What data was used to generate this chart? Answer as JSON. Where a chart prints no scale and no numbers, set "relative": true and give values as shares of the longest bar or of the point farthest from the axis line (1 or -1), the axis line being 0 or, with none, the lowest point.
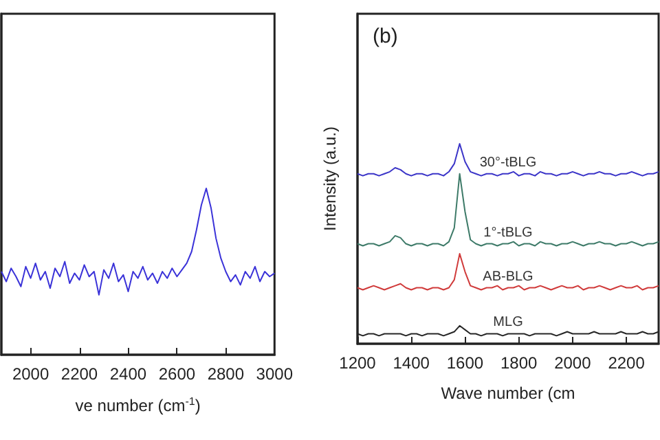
{
  "chart_data": [
    {
      "type": "line",
      "relative": true,
      "xlabel": "ve number (cm$^{-1}$)",
      "xlim": [
        1880,
        3000
      ],
      "xticks": [
        2000,
        2200,
        2400,
        2600,
        2800,
        3000
      ],
      "x": [
        1880,
        1900,
        1920,
        1940,
        1960,
        1980,
        2000,
        2020,
        2040,
        2060,
        2080,
        2100,
        2120,
        2140,
        2160,
        2180,
        2200,
        2220,
        2240,
        2260,
        2280,
        2300,
        2320,
        2340,
        2360,
        2380,
        2400,
        2420,
        2440,
        2460,
        2480,
        2500,
        2520,
        2540,
        2560,
        2580,
        2600,
        2620,
        2640,
        2660,
        2680,
        2700,
        2720,
        2740,
        2760,
        2780,
        2800,
        2820,
        2840,
        2860,
        2880,
        2900,
        2920,
        2940,
        2960,
        2980,
        3000
      ],
      "series": [
        {
          "color": "#3a32d8",
          "values": [
            0.5,
            0.44,
            0.52,
            0.47,
            0.41,
            0.53,
            0.46,
            0.55,
            0.45,
            0.5,
            0.4,
            0.52,
            0.47,
            0.56,
            0.43,
            0.49,
            0.45,
            0.54,
            0.47,
            0.5,
            0.36,
            0.51,
            0.46,
            0.55,
            0.44,
            0.48,
            0.38,
            0.5,
            0.46,
            0.53,
            0.45,
            0.49,
            0.43,
            0.5,
            0.46,
            0.52,
            0.47,
            0.51,
            0.55,
            0.62,
            0.75,
            0.9,
            1.0,
            0.88,
            0.7,
            0.58,
            0.5,
            0.44,
            0.48,
            0.42,
            0.5,
            0.46,
            0.53,
            0.44,
            0.5,
            0.47,
            0.49
          ]
        }
      ]
    },
    {
      "type": "line",
      "relative": true,
      "title": "(b)",
      "xlabel": "Wave number (cm",
      "ylabel": "Intensity (a.u.)",
      "xlim": [
        1200,
        2320
      ],
      "xticks": [
        1200,
        1400,
        1600,
        1800,
        2000,
        2200
      ],
      "x": [
        1200,
        1220,
        1240,
        1260,
        1280,
        1300,
        1320,
        1340,
        1360,
        1380,
        1400,
        1420,
        1440,
        1460,
        1480,
        1500,
        1520,
        1540,
        1560,
        1580,
        1600,
        1620,
        1640,
        1660,
        1680,
        1700,
        1720,
        1740,
        1760,
        1780,
        1800,
        1820,
        1840,
        1860,
        1880,
        1900,
        1920,
        1940,
        1960,
        1980,
        2000,
        2020,
        2040,
        2060,
        2080,
        2100,
        2120,
        2140,
        2160,
        2180,
        2200,
        2220,
        2240,
        2260,
        2280,
        2300,
        2320
      ],
      "series": [
        {
          "name": "30°-tBLG",
          "color": "#3b35c8",
          "values": [
            0.85,
            0.84,
            0.85,
            0.85,
            0.84,
            0.85,
            0.86,
            0.88,
            0.87,
            0.85,
            0.84,
            0.85,
            0.85,
            0.84,
            0.85,
            0.85,
            0.84,
            0.86,
            0.9,
            1.0,
            0.91,
            0.86,
            0.85,
            0.84,
            0.85,
            0.85,
            0.84,
            0.85,
            0.85,
            0.86,
            0.84,
            0.85,
            0.85,
            0.84,
            0.86,
            0.85,
            0.85,
            0.84,
            0.85,
            0.85,
            0.86,
            0.85,
            0.84,
            0.85,
            0.85,
            0.86,
            0.85,
            0.85,
            0.84,
            0.85,
            0.85,
            0.86,
            0.85,
            0.84,
            0.85,
            0.85,
            0.86
          ]
        },
        {
          "name": "1°-tBLG",
          "color": "#3d7a68",
          "values": [
            0.5,
            0.49,
            0.5,
            0.5,
            0.49,
            0.5,
            0.51,
            0.54,
            0.53,
            0.5,
            0.49,
            0.5,
            0.5,
            0.49,
            0.5,
            0.5,
            0.49,
            0.51,
            0.58,
            0.85,
            0.66,
            0.52,
            0.5,
            0.49,
            0.5,
            0.5,
            0.49,
            0.5,
            0.5,
            0.51,
            0.49,
            0.5,
            0.5,
            0.49,
            0.51,
            0.5,
            0.5,
            0.49,
            0.5,
            0.5,
            0.51,
            0.5,
            0.49,
            0.5,
            0.5,
            0.51,
            0.5,
            0.5,
            0.49,
            0.5,
            0.5,
            0.51,
            0.5,
            0.49,
            0.5,
            0.5,
            0.51
          ]
        },
        {
          "name": "AB-BLG",
          "color": "#d03a3a",
          "values": [
            0.28,
            0.27,
            0.28,
            0.29,
            0.28,
            0.27,
            0.28,
            0.29,
            0.3,
            0.28,
            0.27,
            0.28,
            0.28,
            0.27,
            0.28,
            0.28,
            0.27,
            0.28,
            0.32,
            0.45,
            0.36,
            0.29,
            0.28,
            0.27,
            0.28,
            0.28,
            0.29,
            0.27,
            0.28,
            0.28,
            0.29,
            0.27,
            0.28,
            0.28,
            0.29,
            0.28,
            0.27,
            0.28,
            0.29,
            0.28,
            0.28,
            0.29,
            0.27,
            0.28,
            0.28,
            0.29,
            0.28,
            0.27,
            0.28,
            0.29,
            0.28,
            0.28,
            0.29,
            0.27,
            0.28,
            0.28,
            0.29
          ]
        },
        {
          "name": "MLG",
          "color": "#262626",
          "values": [
            0.05,
            0.04,
            0.05,
            0.05,
            0.04,
            0.05,
            0.05,
            0.05,
            0.05,
            0.04,
            0.05,
            0.05,
            0.04,
            0.05,
            0.05,
            0.05,
            0.04,
            0.05,
            0.06,
            0.09,
            0.07,
            0.05,
            0.05,
            0.04,
            0.05,
            0.05,
            0.05,
            0.04,
            0.05,
            0.05,
            0.05,
            0.05,
            0.04,
            0.05,
            0.05,
            0.05,
            0.05,
            0.04,
            0.05,
            0.06,
            0.05,
            0.05,
            0.05,
            0.05,
            0.06,
            0.05,
            0.05,
            0.05,
            0.05,
            0.06,
            0.05,
            0.05,
            0.05,
            0.06,
            0.05,
            0.05,
            0.06
          ]
        }
      ]
    }
  ]
}
